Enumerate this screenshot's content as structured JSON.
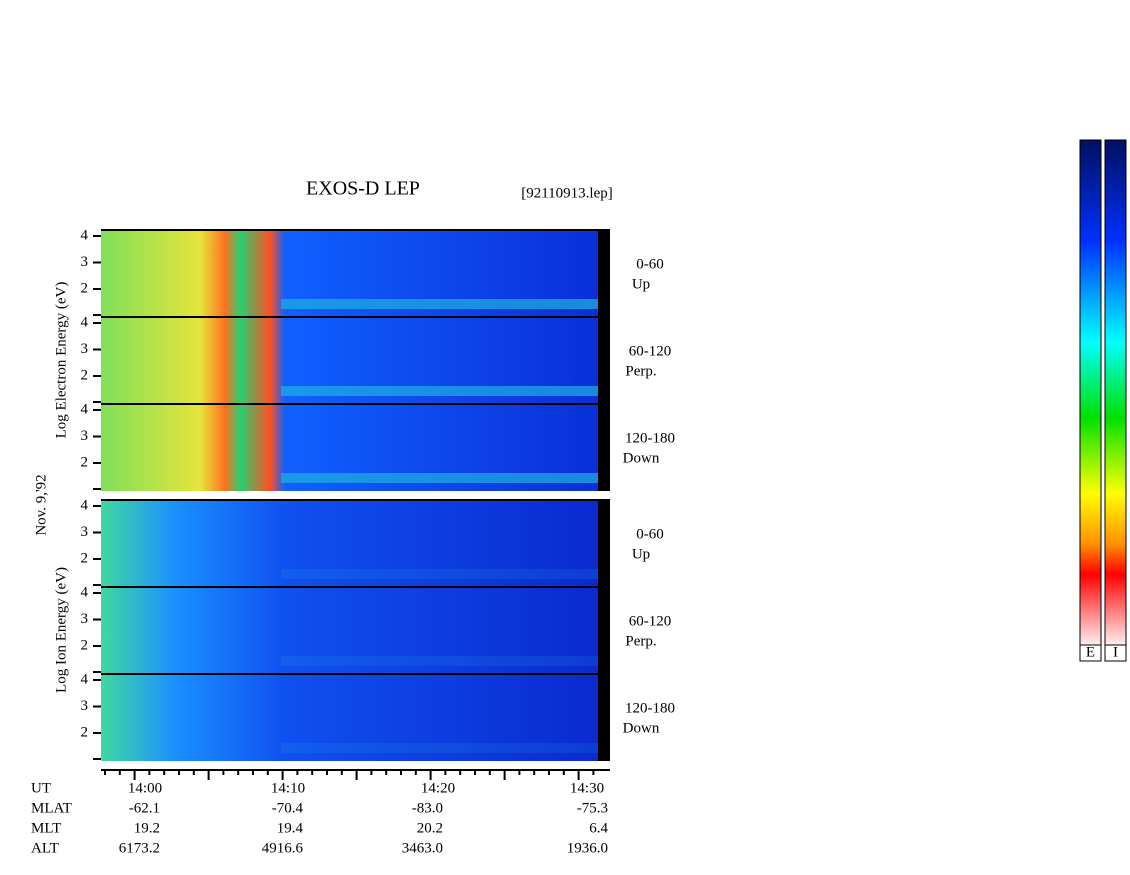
{
  "header": {
    "title": "EXOS-D LEP",
    "file": "[92110913.lep]"
  },
  "date": "Nov. 9,'92",
  "electron": {
    "axis_label": "Log Electron Energy (eV)",
    "panels": [
      {
        "range": "0-60",
        "direction": "Up"
      },
      {
        "range": "60-120",
        "direction": "Perp."
      },
      {
        "range": "120-180",
        "direction": "Down"
      }
    ]
  },
  "ion": {
    "axis_label": "Log Ion Energy (eV)",
    "panels": [
      {
        "range": "0-60",
        "direction": "Up"
      },
      {
        "range": "60-120",
        "direction": "Perp."
      },
      {
        "range": "120-180",
        "direction": "Down"
      }
    ]
  },
  "yticks": [
    "4",
    "3",
    "2"
  ],
  "ephemeris": [
    {
      "label": "UT",
      "values": [
        "14:00",
        "14:10",
        "14:20",
        "14:30"
      ]
    },
    {
      "label": "MLAT",
      "values": [
        "-62.1",
        "-70.4",
        "-83.0",
        "-75.3"
      ]
    },
    {
      "label": "MLT",
      "values": [
        "19.2",
        "19.4",
        "20.2",
        "6.4"
      ]
    },
    {
      "label": "ALT",
      "values": [
        "6173.2",
        "4916.6",
        "3463.0",
        "1936.0"
      ]
    }
  ],
  "colorbars": [
    "E",
    "I"
  ]
}
